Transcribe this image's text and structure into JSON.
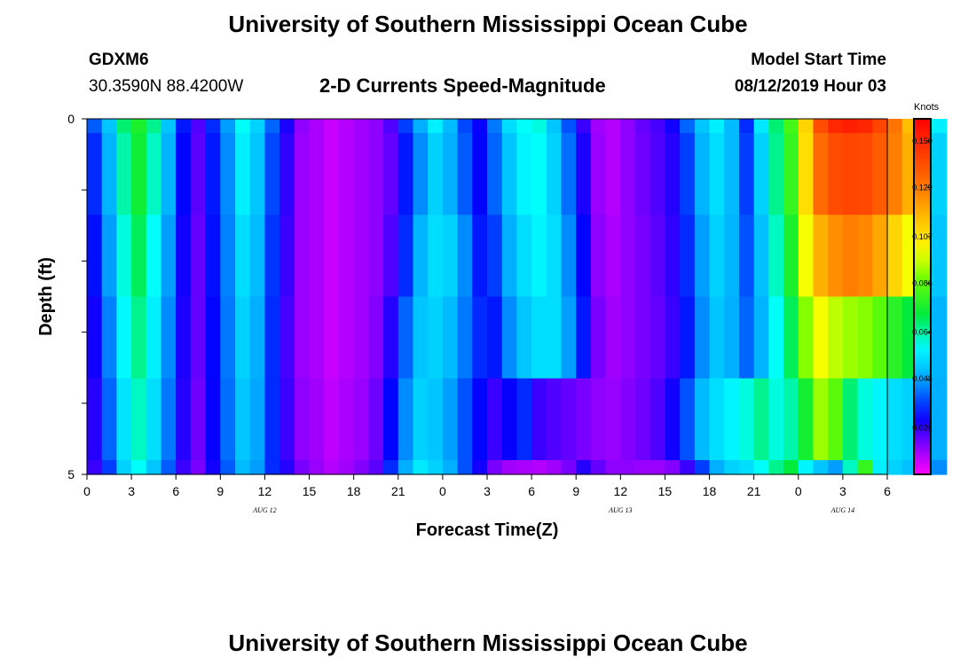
{
  "page": {
    "title_top": "University of Southern Mississippi Ocean Cube",
    "title_bottom": "University of Southern Mississippi Ocean Cube",
    "station_id": "GDXM6",
    "station_coords": "30.3590N 88.4200W",
    "plot_title": "2-D Currents Speed-Magnitude",
    "model_start_label": "Model Start Time",
    "model_start_value": "08/12/2019 Hour 03"
  },
  "chart_data": {
    "type": "heatmap",
    "title": "2-D Currents Speed-Magnitude",
    "xlabel": "Forecast Time(Z)",
    "ylabel": "Depth (ft)",
    "colorbar_label": "Knots",
    "x_tick_labels": [
      "0",
      "3",
      "6",
      "9",
      "12",
      "15",
      "18",
      "21",
      "0",
      "3",
      "6",
      "9",
      "12",
      "15",
      "18",
      "21",
      "0",
      "3",
      "6"
    ],
    "date_labels": [
      {
        "text": "AUG 12",
        "at_tick": 4
      },
      {
        "text": "AUG 13",
        "at_tick": 12
      },
      {
        "text": "AUG 14",
        "at_tick": 17
      }
    ],
    "y_tick_labels": [
      {
        "value": 0,
        "label": "0"
      },
      {
        "value": 1,
        "label": ""
      },
      {
        "value": 2,
        "label": ""
      },
      {
        "value": 3,
        "label": ""
      },
      {
        "value": 4,
        "label": ""
      },
      {
        "value": 5,
        "label": "5"
      }
    ],
    "xlim_hours": [
      0,
      54
    ],
    "ylim": [
      0,
      5
    ],
    "colorbar_ticks": [
      "0.150",
      "0.129",
      "0.107",
      "0.086",
      "0.064",
      "0.043",
      "0.021"
    ],
    "colorbar_tick_values": [
      0.15,
      0.129,
      0.107,
      0.086,
      0.064,
      0.043,
      0.021
    ],
    "vmin": 0.0,
    "vmax": 0.16,
    "depth_layers": 5,
    "time_step_hours": 1,
    "values": [
      [
        0.035,
        0.048,
        0.068,
        0.076,
        0.066,
        0.048,
        0.028,
        0.018,
        0.03,
        0.042,
        0.058,
        0.05,
        0.036,
        0.023,
        0.012,
        0.009,
        0.006,
        0.008,
        0.01,
        0.012,
        0.018,
        0.032,
        0.044,
        0.055,
        0.046,
        0.033,
        0.025,
        0.038,
        0.052,
        0.058,
        0.06,
        0.048,
        0.034,
        0.02,
        0.01,
        0.008,
        0.012,
        0.016,
        0.019,
        0.024,
        0.036,
        0.048,
        0.055,
        0.046,
        0.03,
        0.054,
        0.068,
        0.082,
        0.11,
        0.14,
        0.15,
        0.152,
        0.15,
        0.142,
        0.13,
        0.115,
        0.09,
        0.055
      ],
      [
        0.03,
        0.045,
        0.064,
        0.074,
        0.062,
        0.045,
        0.026,
        0.017,
        0.028,
        0.04,
        0.055,
        0.048,
        0.033,
        0.021,
        0.011,
        0.009,
        0.006,
        0.008,
        0.01,
        0.012,
        0.016,
        0.028,
        0.04,
        0.05,
        0.044,
        0.035,
        0.026,
        0.036,
        0.048,
        0.056,
        0.058,
        0.05,
        0.037,
        0.023,
        0.011,
        0.008,
        0.012,
        0.015,
        0.018,
        0.022,
        0.032,
        0.045,
        0.052,
        0.046,
        0.032,
        0.05,
        0.066,
        0.08,
        0.108,
        0.132,
        0.14,
        0.142,
        0.141,
        0.136,
        0.128,
        0.118,
        0.092,
        0.05
      ],
      [
        0.027,
        0.042,
        0.06,
        0.07,
        0.058,
        0.042,
        0.024,
        0.016,
        0.027,
        0.039,
        0.052,
        0.046,
        0.031,
        0.02,
        0.011,
        0.009,
        0.006,
        0.008,
        0.01,
        0.012,
        0.018,
        0.03,
        0.045,
        0.052,
        0.05,
        0.04,
        0.028,
        0.032,
        0.044,
        0.052,
        0.056,
        0.052,
        0.04,
        0.026,
        0.012,
        0.009,
        0.012,
        0.014,
        0.017,
        0.021,
        0.03,
        0.042,
        0.05,
        0.045,
        0.034,
        0.047,
        0.062,
        0.076,
        0.1,
        0.118,
        0.125,
        0.128,
        0.126,
        0.12,
        0.11,
        0.1,
        0.08,
        0.048
      ],
      [
        0.024,
        0.039,
        0.057,
        0.066,
        0.055,
        0.04,
        0.023,
        0.016,
        0.026,
        0.038,
        0.05,
        0.044,
        0.03,
        0.019,
        0.011,
        0.009,
        0.006,
        0.008,
        0.01,
        0.013,
        0.022,
        0.036,
        0.048,
        0.05,
        0.046,
        0.038,
        0.03,
        0.028,
        0.04,
        0.048,
        0.052,
        0.052,
        0.042,
        0.028,
        0.014,
        0.01,
        0.012,
        0.014,
        0.016,
        0.02,
        0.028,
        0.04,
        0.048,
        0.044,
        0.036,
        0.045,
        0.058,
        0.07,
        0.09,
        0.1,
        0.095,
        0.092,
        0.09,
        0.085,
        0.078,
        0.072,
        0.062,
        0.045
      ],
      [
        0.022,
        0.036,
        0.053,
        0.062,
        0.052,
        0.038,
        0.022,
        0.015,
        0.025,
        0.037,
        0.048,
        0.043,
        0.03,
        0.02,
        0.012,
        0.01,
        0.007,
        0.009,
        0.011,
        0.015,
        0.026,
        0.04,
        0.05,
        0.048,
        0.042,
        0.034,
        0.026,
        0.02,
        0.025,
        0.03,
        0.02,
        0.018,
        0.016,
        0.014,
        0.012,
        0.011,
        0.013,
        0.015,
        0.018,
        0.024,
        0.034,
        0.046,
        0.052,
        0.056,
        0.06,
        0.066,
        0.06,
        0.064,
        0.075,
        0.092,
        0.085,
        0.068,
        0.06,
        0.056,
        0.052,
        0.05,
        0.048,
        0.044
      ],
      [
        0.02,
        0.032,
        0.05,
        0.058,
        0.048,
        0.035,
        0.02,
        0.014,
        0.024,
        0.035,
        0.046,
        0.042,
        0.03,
        0.022,
        0.014,
        0.011,
        0.008,
        0.01,
        0.013,
        0.017,
        0.03,
        0.044,
        0.054,
        0.05,
        0.044,
        0.034,
        0.024,
        0.014,
        0.01,
        0.009,
        0.008,
        0.01,
        0.014,
        0.022,
        0.016,
        0.012,
        0.012,
        0.011,
        0.011,
        0.013,
        0.02,
        0.032,
        0.044,
        0.05,
        0.052,
        0.058,
        0.066,
        0.072,
        0.056,
        0.048,
        0.042,
        0.062,
        0.08,
        0.055,
        0.05,
        0.047,
        0.044,
        0.04
      ]
    ]
  }
}
